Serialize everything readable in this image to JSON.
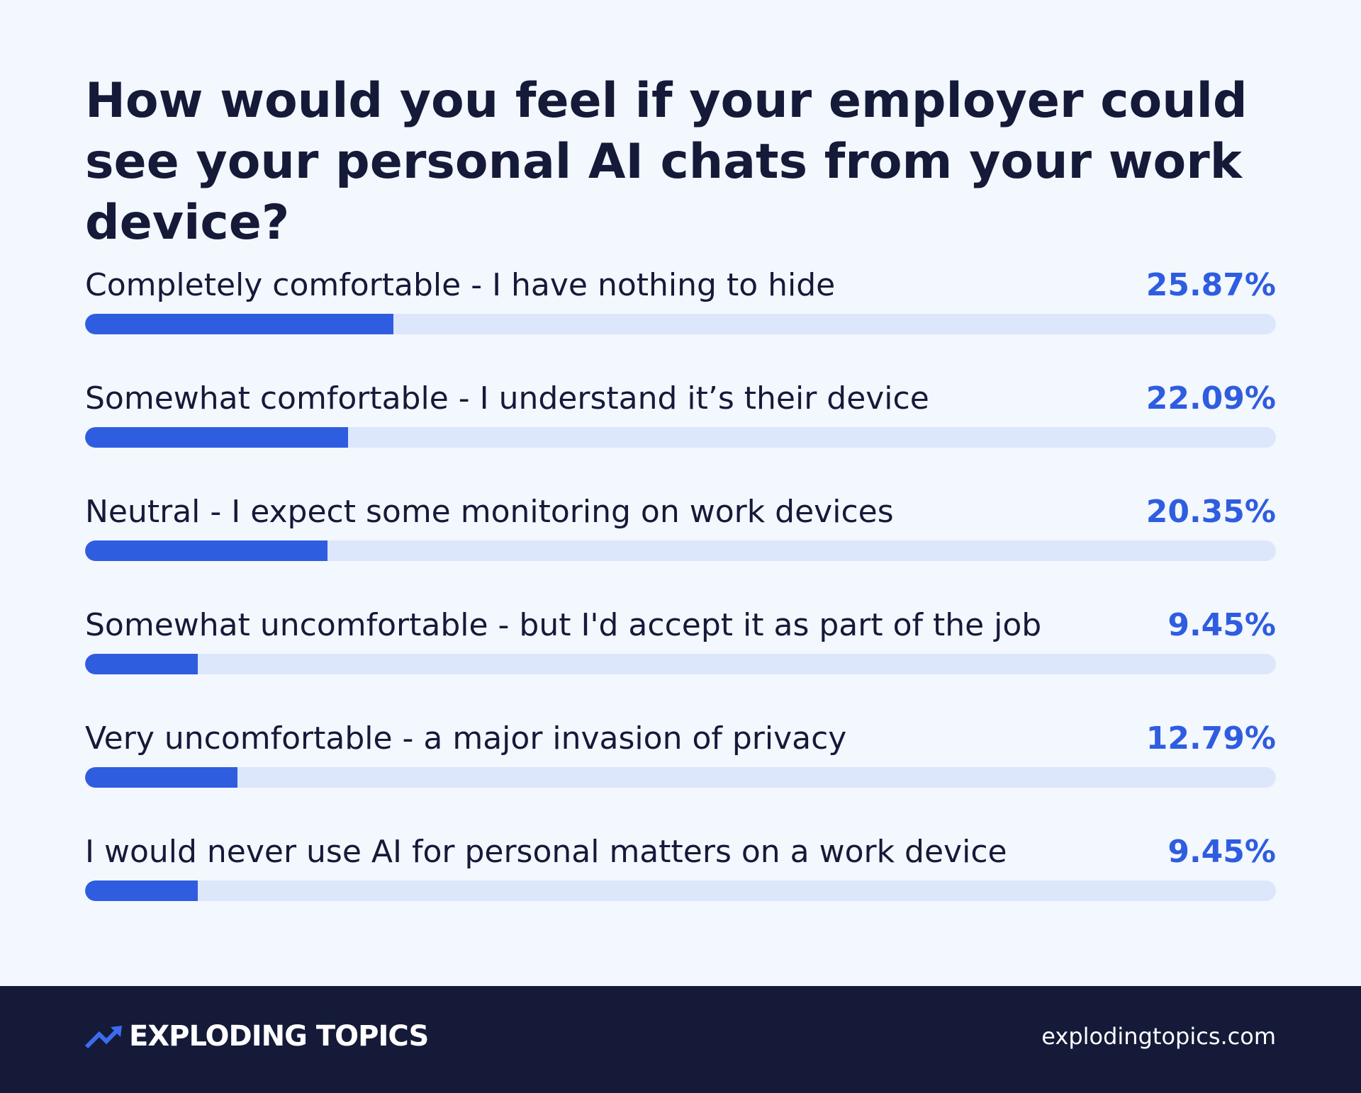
{
  "chart_data": {
    "type": "bar",
    "orientation": "horizontal",
    "title": "How would you feel if your employer could see your personal AI chats from your work device?",
    "categories": [
      "Completely comfortable - I have nothing to hide",
      "Somewhat comfortable - I understand it’s their device",
      "Neutral - I expect some monitoring on work devices",
      "Somewhat uncomfortable - but I'd accept it as part of the job",
      "Very uncomfortable - a major invasion of privacy",
      "I would never use AI for personal matters on a work device"
    ],
    "values": [
      25.87,
      22.09,
      20.35,
      9.45,
      12.79,
      9.45
    ],
    "value_labels": [
      "25.87%",
      "22.09%",
      "20.35%",
      "9.45%",
      "12.79%",
      "9.45%"
    ],
    "color": "#2f5de0",
    "xlim": [
      0,
      100
    ]
  },
  "footer": {
    "brand": "EXPLODING TOPICS",
    "url": "explodingtopics.com"
  }
}
